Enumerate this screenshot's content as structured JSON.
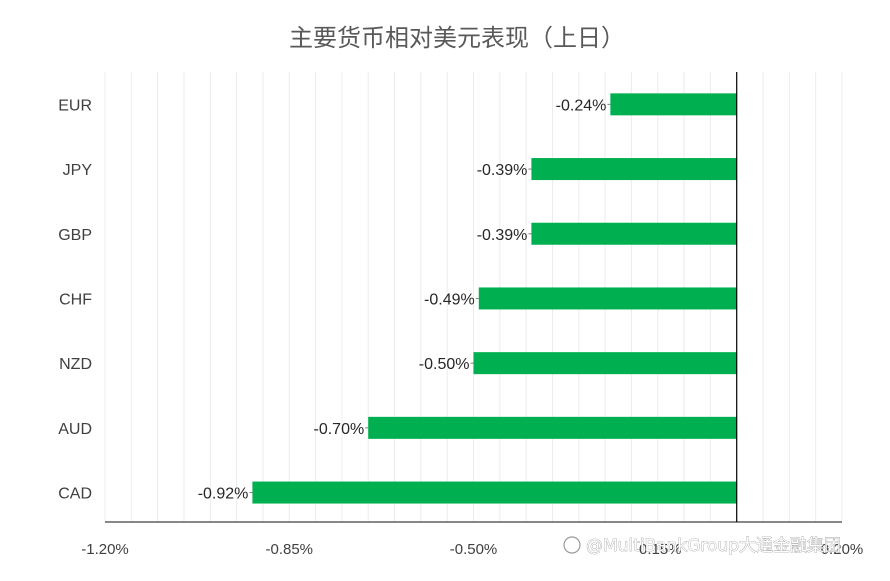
{
  "chart_data": {
    "type": "bar",
    "orientation": "horizontal",
    "title": "主要货币相对美元表现（上日）",
    "categories": [
      "EUR",
      "JPY",
      "GBP",
      "CHF",
      "NZD",
      "AUD",
      "CAD"
    ],
    "values": [
      -0.24,
      -0.39,
      -0.39,
      -0.49,
      -0.5,
      -0.7,
      -0.92
    ],
    "data_labels": [
      "-0.24%",
      "-0.39%",
      "-0.39%",
      "-0.49%",
      "-0.50%",
      "-0.70%",
      "-0.92%"
    ],
    "x_ticks": [
      -1.2,
      -0.85,
      -0.5,
      -0.15,
      0.2
    ],
    "x_tick_labels": [
      "-1.20%",
      "-0.85%",
      "-0.50%",
      "-0.15%",
      "0.20%"
    ],
    "xlim": [
      -1.2,
      0.2
    ],
    "bar_color": "#00B050",
    "grid": true,
    "legend": "none"
  },
  "watermark": "@MultiBankGroup大通金融集团"
}
